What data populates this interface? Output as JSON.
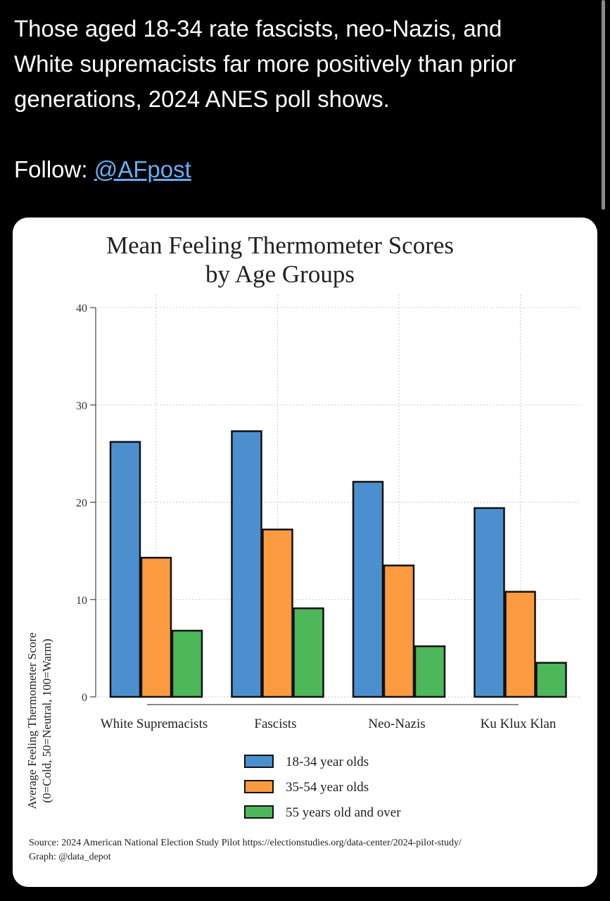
{
  "tweet": {
    "text_line1": "Those aged 18-34 rate fascists, neo-Nazis, and",
    "text_line2": "White supremacists far more positively than prior",
    "text_line3": "generations, 2024 ANES poll shows.",
    "follow_label": "Follow: ",
    "handle": "@AFpost"
  },
  "chart_data": {
    "type": "bar",
    "title": "Mean Feeling Thermometer Scores",
    "subtitle": "by Age Groups",
    "categories": [
      "White Supremacists",
      "Fascists",
      "Neo-Nazis",
      "Ku Klux Klan"
    ],
    "series": [
      {
        "name": "18-34 year olds",
        "color": "#4c8fcf",
        "values": [
          26.2,
          27.3,
          22.1,
          19.4
        ]
      },
      {
        "name": "35-54 year olds",
        "color": "#fb9a3e",
        "values": [
          14.3,
          17.2,
          13.5,
          10.8
        ]
      },
      {
        "name": "55 years old and over",
        "color": "#4cb85a",
        "values": [
          6.8,
          9.1,
          5.2,
          3.5
        ]
      }
    ],
    "ylabel_line1": "Average Feeling Thermometer Score",
    "ylabel_line2": "(0=Cold, 50=Neutral, 100=Warm)",
    "xlabel": "",
    "ylim": [
      0,
      40
    ],
    "yticks": [
      0,
      10,
      20,
      30,
      40
    ],
    "ytick_labels": [
      "0",
      "10",
      "20",
      "30",
      "40"
    ],
    "grid": true,
    "legend_position": "bottom-center",
    "source_line1": "Source: 2024 American National Election Study Pilot https://electionstudies.org/data-center/2024-pilot-study/",
    "source_line2": "Graph: @data_depot"
  }
}
